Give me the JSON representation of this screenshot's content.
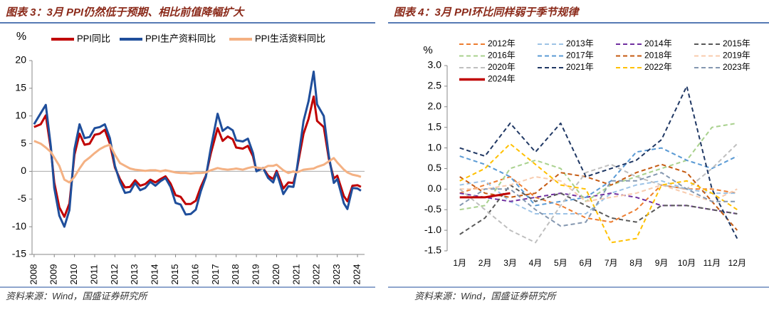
{
  "chart_data": [
    {
      "type": "line",
      "title": "图表 3：3月 PPI仍然低于预期、相比前值降幅扩大",
      "ylabel": "%",
      "source": "资料来源：Wind，国盛证券研究所",
      "legend": "top",
      "grid": false,
      "x": [
        2008.0,
        2008.33,
        2008.58,
        2008.83,
        2009.0,
        2009.25,
        2009.5,
        2009.75,
        2010.0,
        2010.25,
        2010.5,
        2010.75,
        2011.0,
        2011.25,
        2011.5,
        2011.75,
        2012.0,
        2012.25,
        2012.5,
        2012.75,
        2013.0,
        2013.25,
        2013.5,
        2013.75,
        2014.0,
        2014.25,
        2014.5,
        2014.75,
        2015.0,
        2015.25,
        2015.5,
        2015.75,
        2016.0,
        2016.25,
        2016.5,
        2016.75,
        2017.08,
        2017.33,
        2017.58,
        2017.83,
        2018.0,
        2018.33,
        2018.58,
        2018.83,
        2019.0,
        2019.33,
        2019.58,
        2019.83,
        2020.0,
        2020.33,
        2020.58,
        2020.83,
        2021.0,
        2021.33,
        2021.58,
        2021.83,
        2022.0,
        2022.33,
        2022.58,
        2022.83,
        2023.0,
        2023.33,
        2023.5,
        2023.75,
        2024.0,
        2024.17
      ],
      "xlim": [
        2007.9,
        2024.35
      ],
      "xticks": [
        2008,
        2009,
        2010,
        2011,
        2012,
        2013,
        2014,
        2015,
        2016,
        2017,
        2018,
        2019,
        2020,
        2021,
        2022,
        2023,
        2024
      ],
      "ylim": [
        -15,
        20
      ],
      "yticks": [
        -15,
        -10,
        -5,
        0,
        5,
        10,
        15,
        20
      ],
      "series": [
        {
          "name": "PPI同比",
          "color": "#c00000",
          "values": [
            8.0,
            8.5,
            10.1,
            4.0,
            -2.0,
            -6.5,
            -8.2,
            -5.8,
            3.0,
            6.8,
            4.8,
            5.0,
            6.6,
            6.8,
            7.5,
            5.0,
            0.7,
            -1.4,
            -2.9,
            -2.8,
            -1.6,
            -2.6,
            -2.3,
            -1.5,
            -2.0,
            -1.4,
            -0.9,
            -2.2,
            -4.3,
            -4.6,
            -5.9,
            -5.9,
            -5.3,
            -2.8,
            -0.8,
            3.3,
            7.8,
            5.5,
            6.3,
            5.8,
            4.3,
            4.1,
            4.6,
            2.7,
            0.1,
            0.6,
            -0.8,
            -1.4,
            0.1,
            -3.1,
            -2.0,
            -2.1,
            0.3,
            6.8,
            9.5,
            13.5,
            9.1,
            8.0,
            2.3,
            -1.3,
            -0.8,
            -4.5,
            -5.4,
            -2.6,
            -2.5,
            -2.8
          ]
        },
        {
          "name": "PPI生产资料同比",
          "color": "#1f4e9b",
          "values": [
            8.5,
            10.5,
            12.0,
            4.5,
            -3.0,
            -8.0,
            -10.0,
            -7.0,
            4.0,
            8.5,
            6.0,
            6.2,
            7.8,
            8.0,
            8.5,
            6.0,
            1.0,
            -1.9,
            -3.9,
            -3.7,
            -2.1,
            -3.4,
            -3.0,
            -1.9,
            -2.6,
            -1.8,
            -1.2,
            -2.8,
            -5.7,
            -6.0,
            -7.8,
            -7.7,
            -6.9,
            -3.6,
            -1.0,
            4.3,
            10.4,
            7.3,
            8.0,
            7.4,
            5.6,
            5.4,
            5.9,
            3.3,
            0.0,
            0.6,
            -1.2,
            -2.0,
            -0.2,
            -4.1,
            -2.7,
            -2.8,
            0.4,
            9.1,
            12.7,
            18.0,
            12.1,
            10.0,
            2.8,
            -2.1,
            -1.4,
            -5.8,
            -6.8,
            -3.0,
            -3.1,
            -3.5
          ]
        },
        {
          "name": "PPI生活资料同比",
          "color": "#f4b183",
          "values": [
            5.5,
            5.0,
            4.3,
            3.5,
            2.5,
            1.0,
            -1.5,
            -2.0,
            -1.0,
            0.5,
            1.8,
            2.5,
            3.3,
            4.0,
            4.5,
            4.8,
            3.0,
            1.5,
            1.0,
            0.5,
            0.3,
            0.2,
            0.1,
            0.2,
            0.2,
            0.0,
            0.2,
            0.0,
            -0.2,
            -0.3,
            -0.3,
            -0.4,
            -0.3,
            -0.3,
            -0.2,
            0.2,
            0.6,
            0.4,
            0.3,
            0.4,
            0.5,
            0.3,
            0.6,
            0.8,
            0.7,
            0.5,
            1.0,
            1.0,
            1.2,
            0.2,
            -0.3,
            0.0,
            -0.2,
            0.3,
            0.4,
            0.5,
            0.8,
            1.2,
            1.8,
            2.4,
            1.6,
            0.3,
            -0.2,
            -0.6,
            -0.8,
            -1.0
          ]
        }
      ]
    },
    {
      "type": "line",
      "title": "图表 4：3月 PPI环比同样弱于季节规律",
      "ylabel": "%",
      "source": "资料来源：Wind，国盛证券研究所",
      "legend": "top",
      "grid": false,
      "categories": [
        "1月",
        "2月",
        "3月",
        "4月",
        "5月",
        "6月",
        "7月",
        "8月",
        "9月",
        "10月",
        "11月",
        "12月"
      ],
      "ylim": [
        -1.5,
        3.0
      ],
      "yticks": [
        -1.5,
        {
          "value": -1,
          "label": "-1.0"
        },
        -0.5,
        {
          "value": 0,
          "label": "0.0"
        },
        0.5,
        {
          "value": 1,
          "label": "1.0"
        },
        1.5,
        {
          "value": 2,
          "label": "2.0"
        },
        2.5,
        {
          "value": 3,
          "label": "3.0"
        }
      ],
      "series": [
        {
          "name": "2012年",
          "color": "#ed7d31",
          "line_style": "dashed",
          "values": [
            -0.1,
            0.1,
            0.3,
            -0.2,
            -0.4,
            -0.7,
            -0.8,
            -0.5,
            0.1,
            0.0,
            0.0,
            -0.1
          ]
        },
        {
          "name": "2013年",
          "color": "#9dc3e6",
          "line_style": "dashed",
          "values": [
            0.1,
            0.2,
            -0.3,
            -0.6,
            -0.6,
            -0.6,
            -0.1,
            0.1,
            0.2,
            0.0,
            -0.1,
            -0.1
          ]
        },
        {
          "name": "2014年",
          "color": "#7030a0",
          "line_style": "dashed",
          "values": [
            -0.1,
            -0.2,
            -0.3,
            -0.2,
            -0.1,
            -0.2,
            -0.1,
            -0.2,
            -0.4,
            -0.4,
            -0.5,
            -0.6
          ]
        },
        {
          "name": "2015年",
          "color": "#595959",
          "line_style": "dashed",
          "values": [
            -1.1,
            -0.7,
            0.1,
            -0.3,
            -0.1,
            -0.4,
            -0.7,
            -0.8,
            -0.4,
            -0.4,
            -0.5,
            -0.6
          ]
        },
        {
          "name": "2016年",
          "color": "#a9d18e",
          "line_style": "dashed",
          "values": [
            -0.5,
            -0.4,
            0.5,
            0.7,
            0.5,
            -0.3,
            0.1,
            0.3,
            0.5,
            0.7,
            1.5,
            1.6
          ]
        },
        {
          "name": "2017年",
          "color": "#5b9bd5",
          "line_style": "dashed",
          "values": [
            0.8,
            0.6,
            0.3,
            -0.4,
            -0.3,
            -0.2,
            0.2,
            0.9,
            1.0,
            0.7,
            0.5,
            0.8
          ]
        },
        {
          "name": "2018年",
          "color": "#c55a11",
          "line_style": "dashed",
          "values": [
            0.3,
            -0.1,
            -0.2,
            -0.1,
            0.4,
            0.3,
            0.1,
            0.4,
            0.6,
            0.4,
            -0.3,
            -1.0
          ]
        },
        {
          "name": "2019年",
          "color": "#f8cbad",
          "line_style": "dashed",
          "values": [
            0.0,
            0.0,
            0.1,
            0.3,
            0.2,
            -0.3,
            -0.2,
            -0.1,
            0.1,
            -0.1,
            -0.3,
            0.0
          ]
        },
        {
          "name": "2020年",
          "color": "#bfbfbf",
          "line_style": "dashed",
          "values": [
            0.0,
            -0.5,
            -1.0,
            -1.3,
            -0.4,
            0.4,
            0.6,
            0.3,
            0.1,
            0.0,
            0.5,
            1.1
          ]
        },
        {
          "name": "2021年",
          "color": "#203864",
          "line_style": "dashed",
          "values": [
            1.0,
            0.8,
            1.6,
            0.9,
            1.6,
            0.3,
            0.5,
            0.7,
            1.2,
            2.5,
            0.0,
            -1.2
          ]
        },
        {
          "name": "2022年",
          "color": "#ffc000",
          "line_style": "dashed",
          "values": [
            0.2,
            0.5,
            1.1,
            0.6,
            0.1,
            0.0,
            -1.3,
            -1.2,
            0.1,
            0.2,
            -0.1,
            -0.5
          ]
        },
        {
          "name": "2023年",
          "color": "#8497b0",
          "line_style": "dashed",
          "values": [
            -0.4,
            0.0,
            0.0,
            -0.5,
            -0.9,
            -0.8,
            0.2,
            0.2,
            0.4,
            0.0,
            -0.3,
            -0.3
          ]
        },
        {
          "name": "2024年",
          "color": "#c00000",
          "line_style": "solid",
          "values": [
            -0.2,
            -0.2,
            -0.1,
            null,
            null,
            null,
            null,
            null,
            null,
            null,
            null,
            null
          ]
        }
      ]
    }
  ]
}
